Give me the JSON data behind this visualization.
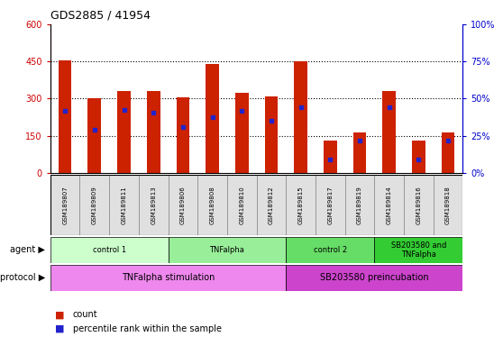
{
  "title": "GDS2885 / 41954",
  "samples": [
    "GSM189807",
    "GSM189809",
    "GSM189811",
    "GSM189813",
    "GSM189806",
    "GSM189808",
    "GSM189810",
    "GSM189812",
    "GSM189815",
    "GSM189817",
    "GSM189819",
    "GSM189814",
    "GSM189816",
    "GSM189818"
  ],
  "count_values": [
    455,
    300,
    330,
    330,
    305,
    440,
    325,
    310,
    450,
    130,
    165,
    330,
    130,
    165
  ],
  "percentile_values": [
    250,
    175,
    255,
    245,
    185,
    225,
    250,
    210,
    265,
    55,
    130,
    265,
    55,
    130
  ],
  "ylim_left": [
    0,
    600
  ],
  "ylim_right": [
    0,
    100
  ],
  "yticks_left": [
    0,
    150,
    300,
    450,
    600
  ],
  "yticks_right": [
    0,
    25,
    50,
    75,
    100
  ],
  "left_axis_color": "#cc0000",
  "right_axis_color": "#0000cc",
  "bar_color": "#cc2200",
  "blue_marker_color": "#2222cc",
  "agent_groups": [
    {
      "label": "control 1",
      "start": 0,
      "end": 4,
      "color": "#ccffcc"
    },
    {
      "label": "TNFalpha",
      "start": 4,
      "end": 8,
      "color": "#99ee99"
    },
    {
      "label": "control 2",
      "start": 8,
      "end": 11,
      "color": "#66dd66"
    },
    {
      "label": "SB203580 and\nTNFalpha",
      "start": 11,
      "end": 14,
      "color": "#33cc33"
    }
  ],
  "protocol_groups": [
    {
      "label": "TNFalpha stimulation",
      "start": 0,
      "end": 8,
      "color": "#ee88ee"
    },
    {
      "label": "SB203580 preincubation",
      "start": 8,
      "end": 14,
      "color": "#cc44cc"
    }
  ],
  "legend_items": [
    {
      "label": "count",
      "color": "#cc2200"
    },
    {
      "label": "percentile rank within the sample",
      "color": "#2222cc"
    }
  ],
  "bar_width": 0.45,
  "n_bars": 14
}
